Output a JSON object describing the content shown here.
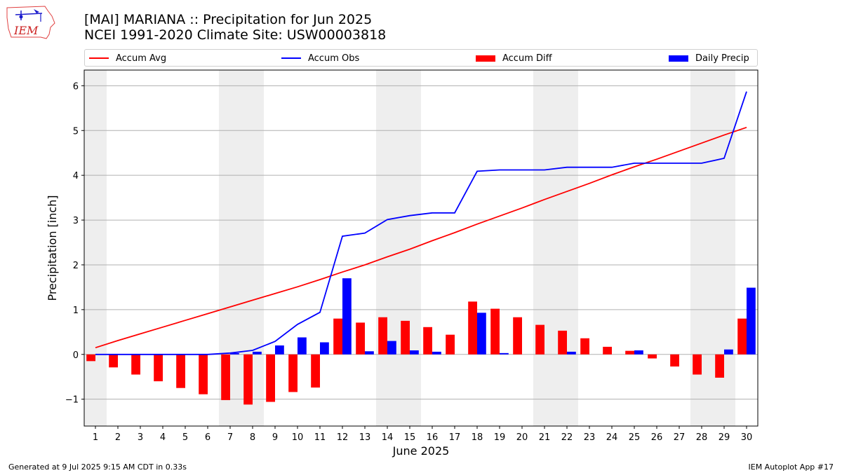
{
  "header": {
    "title_line1": "[MAI] MARIANA :: Precipitation for Jun 2025",
    "title_line2": "NCEI 1991-2020 Climate Site: USW00003818",
    "logo_text": "IEM"
  },
  "footer": {
    "generated": "Generated at 9 Jul 2025 9:15 AM CDT in 0.33s",
    "app": "IEM Autoplot App #17"
  },
  "colors": {
    "accum_avg": "#ff0000",
    "accum_obs": "#0000ff",
    "accum_diff": "#ff0000",
    "daily_precip": "#0000ff",
    "weekend_shade": "#eeeeee",
    "grid": "#b0b0b0"
  },
  "chart_data": {
    "type": "bar",
    "xlabel": "June 2025",
    "ylabel": "Precipitation [inch]",
    "ylim": [
      -1.6,
      6.35
    ],
    "yticks": [
      -1,
      0,
      1,
      2,
      3,
      4,
      5,
      6
    ],
    "grid": "horizontal",
    "legend_placement": "top",
    "categories": [
      "1",
      "2",
      "3",
      "4",
      "5",
      "6",
      "7",
      "8",
      "9",
      "10",
      "11",
      "12",
      "13",
      "14",
      "15",
      "16",
      "17",
      "18",
      "19",
      "20",
      "21",
      "22",
      "23",
      "24",
      "25",
      "26",
      "27",
      "28",
      "29",
      "30"
    ],
    "weekend_days": [
      1,
      7,
      8,
      14,
      15,
      21,
      22,
      28,
      29
    ],
    "series": [
      {
        "name": "Accum Avg",
        "kind": "line",
        "values": [
          0.15,
          0.31,
          0.46,
          0.61,
          0.76,
          0.91,
          1.06,
          1.21,
          1.36,
          1.51,
          1.67,
          1.84,
          2.0,
          2.18,
          2.35,
          2.54,
          2.72,
          2.91,
          3.09,
          3.27,
          3.46,
          3.64,
          3.82,
          4.01,
          4.19,
          4.36,
          4.54,
          4.72,
          4.9,
          5.07
        ]
      },
      {
        "name": "Accum Obs",
        "kind": "line",
        "values": [
          0,
          0,
          0,
          0,
          0,
          0,
          0.03,
          0.09,
          0.29,
          0.67,
          0.94,
          2.64,
          2.71,
          3.01,
          3.1,
          3.16,
          3.16,
          4.09,
          4.12,
          4.12,
          4.12,
          4.18,
          4.18,
          4.18,
          4.27,
          4.27,
          4.27,
          4.27,
          4.38,
          5.87
        ]
      },
      {
        "name": "Accum Diff",
        "kind": "bar",
        "values": [
          -0.15,
          -0.29,
          -0.45,
          -0.6,
          -0.75,
          -0.89,
          -1.02,
          -1.12,
          -1.06,
          -0.84,
          -0.74,
          0.8,
          0.71,
          0.83,
          0.75,
          0.61,
          0.44,
          1.18,
          1.02,
          0.83,
          0.66,
          0.53,
          0.36,
          0.17,
          0.08,
          -0.09,
          -0.27,
          -0.45,
          -0.52,
          0.8
        ]
      },
      {
        "name": "Daily Precip",
        "kind": "bar",
        "values": [
          0,
          0,
          0,
          0,
          0,
          0,
          0.03,
          0.06,
          0.2,
          0.38,
          0.27,
          1.7,
          0.07,
          0.3,
          0.09,
          0.06,
          0,
          0.93,
          0.03,
          0,
          0,
          0.06,
          0,
          0,
          0.09,
          0,
          0,
          0,
          0.11,
          1.49
        ]
      }
    ]
  }
}
